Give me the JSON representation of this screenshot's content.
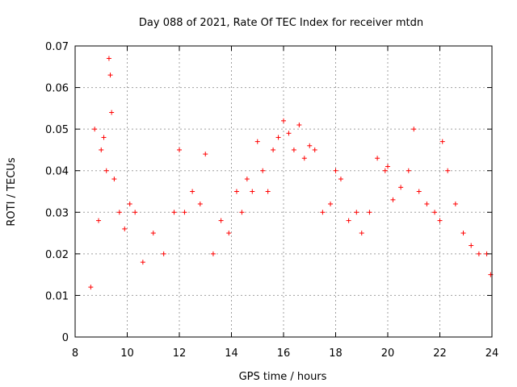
{
  "chart_data": {
    "type": "scatter",
    "title": "Day 088 of 2021, Rate Of TEC Index for receiver mtdn",
    "xlabel": "GPS time / hours",
    "ylabel": "ROTI / TECUs",
    "xlim": [
      8,
      24
    ],
    "ylim": [
      0,
      0.07
    ],
    "xticks": [
      8,
      10,
      12,
      14,
      16,
      18,
      20,
      22,
      24
    ],
    "xtick_labels": [
      "8",
      "10",
      "12",
      "14",
      "16",
      "18",
      "20",
      "22",
      "24"
    ],
    "yticks": [
      0,
      0.01,
      0.02,
      0.03,
      0.04,
      0.05,
      0.06,
      0.07
    ],
    "ytick_labels": [
      "0",
      "0.01",
      "0.02",
      "0.03",
      "0.04",
      "0.05",
      "0.06",
      "0.07"
    ],
    "grid": true,
    "marker": "+",
    "color": "#ff0000",
    "series": [
      {
        "name": "ROTI",
        "x": [
          8.6,
          8.75,
          8.9,
          9.0,
          9.1,
          9.2,
          9.3,
          9.35,
          9.4,
          9.5,
          9.7,
          9.9,
          10.1,
          10.3,
          10.6,
          11.0,
          11.4,
          11.8,
          12.0,
          12.2,
          12.5,
          12.8,
          13.0,
          13.3,
          13.6,
          13.9,
          14.2,
          14.4,
          14.6,
          14.8,
          15.0,
          15.2,
          15.4,
          15.6,
          15.8,
          16.0,
          16.2,
          16.4,
          16.6,
          16.8,
          17.0,
          17.2,
          17.5,
          17.8,
          18.0,
          18.2,
          18.5,
          18.8,
          19.0,
          19.3,
          19.6,
          19.9,
          20.0,
          20.2,
          20.5,
          20.8,
          21.0,
          21.2,
          21.5,
          21.8,
          22.0,
          22.1,
          22.3,
          22.6,
          22.9,
          23.2,
          23.5,
          23.8,
          23.95
        ],
        "y": [
          0.012,
          0.05,
          0.028,
          0.045,
          0.048,
          0.04,
          0.067,
          0.063,
          0.054,
          0.038,
          0.03,
          0.026,
          0.032,
          0.03,
          0.018,
          0.025,
          0.02,
          0.03,
          0.045,
          0.03,
          0.035,
          0.032,
          0.044,
          0.02,
          0.028,
          0.025,
          0.035,
          0.03,
          0.038,
          0.035,
          0.047,
          0.04,
          0.035,
          0.045,
          0.048,
          0.052,
          0.049,
          0.045,
          0.051,
          0.043,
          0.046,
          0.045,
          0.03,
          0.032,
          0.04,
          0.038,
          0.028,
          0.03,
          0.025,
          0.03,
          0.043,
          0.04,
          0.041,
          0.033,
          0.036,
          0.04,
          0.05,
          0.035,
          0.032,
          0.03,
          0.028,
          0.047,
          0.04,
          0.032,
          0.025,
          0.022,
          0.02,
          0.02,
          0.015
        ]
      }
    ]
  }
}
